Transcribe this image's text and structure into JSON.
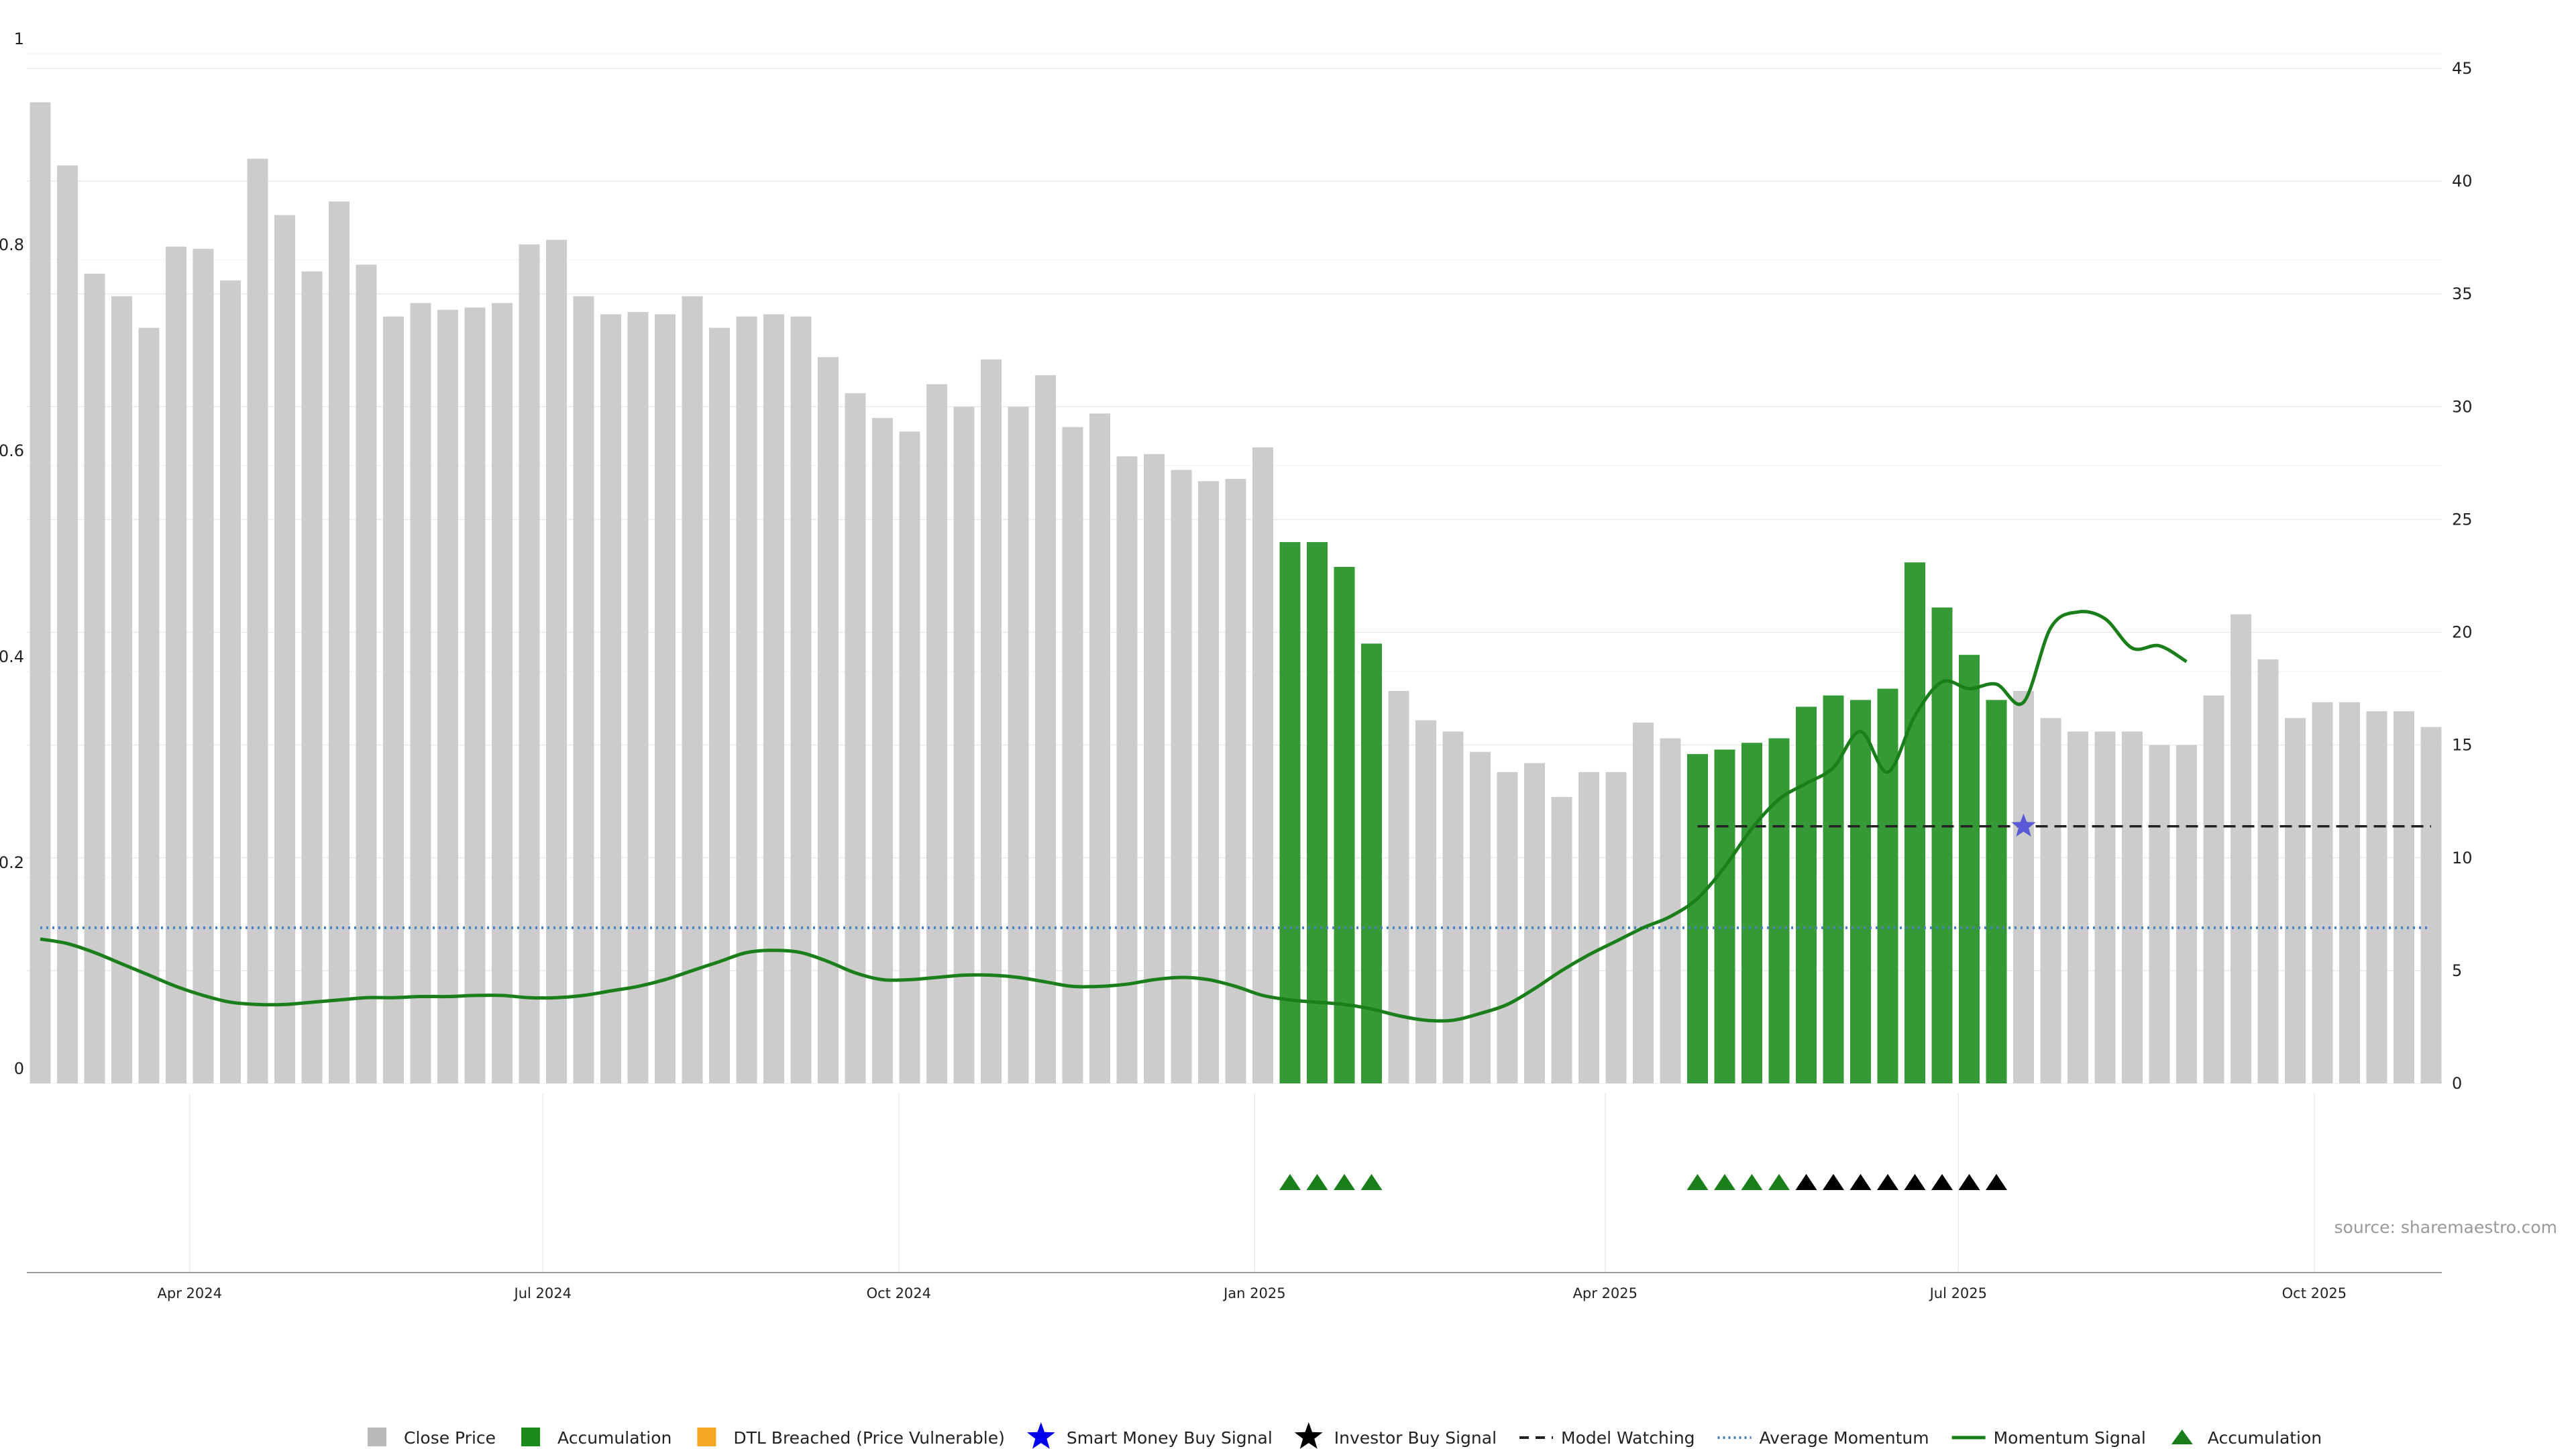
{
  "chart_data": {
    "type": "bar",
    "title": "",
    "left_axis": {
      "ticks": [
        0,
        0.2,
        0.4,
        0.6,
        0.8,
        1
      ],
      "tick_labels": [
        "0",
        "0.2",
        "0.4",
        "0.6",
        "0.8",
        "1"
      ],
      "range": [
        0,
        1
      ]
    },
    "right_axis": {
      "ticks": [
        0,
        5,
        10,
        15,
        20,
        25,
        30,
        35,
        40,
        45
      ],
      "tick_labels": [
        "0",
        "5",
        "10",
        "15",
        "20",
        "25",
        "30",
        "35",
        "40",
        "45"
      ],
      "range": [
        0,
        45
      ]
    },
    "x_axis": {
      "labels": [
        "Apr 2024",
        "Jul 2024",
        "Oct 2024",
        "Jan 2025",
        "Apr 2025",
        "Jul 2025",
        "Oct 2025"
      ],
      "label_bar_positions": [
        5.5,
        18.5,
        31.6,
        44.7,
        57.6,
        70.6,
        83.7
      ]
    },
    "grid": true,
    "close_price_weekly": [
      43.5,
      40.7,
      35.9,
      34.9,
      33.5,
      37.1,
      37.0,
      35.6,
      41.0,
      38.5,
      36.0,
      39.1,
      36.3,
      34.0,
      34.6,
      34.3,
      34.4,
      34.6,
      37.2,
      37.4,
      34.9,
      34.1,
      34.2,
      34.1,
      34.9,
      33.5,
      34.0,
      34.1,
      34.0,
      32.2,
      30.6,
      29.5,
      28.9,
      31.0,
      30.0,
      32.1,
      30.0,
      31.4,
      29.1,
      29.7,
      27.8,
      27.9,
      27.2,
      26.7,
      26.8,
      28.2,
      24.0,
      24.0,
      22.9,
      19.5,
      17.4,
      16.1,
      15.6,
      14.7,
      13.8,
      14.2,
      12.7,
      13.8,
      13.8,
      16.0,
      15.3,
      14.6,
      14.8,
      15.1,
      15.3,
      16.7,
      17.2,
      17.0,
      17.5,
      23.1,
      21.1,
      19.0,
      17.0,
      17.4,
      16.2,
      15.6,
      15.6,
      15.6,
      15.0,
      15.0,
      17.2,
      20.8,
      18.8,
      16.2,
      16.9,
      16.9,
      16.5,
      16.5,
      15.8
    ],
    "accumulation_bar_indices": [
      46,
      47,
      48,
      49,
      61,
      62,
      63,
      64,
      65,
      66,
      67,
      68,
      69,
      70,
      71,
      72
    ],
    "dtl_breached_bar_indices": [],
    "momentum_signal": [
      6.4,
      6.2,
      5.8,
      5.3,
      4.8,
      4.3,
      3.9,
      3.6,
      3.5,
      3.5,
      3.6,
      3.7,
      3.8,
      3.8,
      3.85,
      3.85,
      3.9,
      3.9,
      3.8,
      3.8,
      3.9,
      4.1,
      4.3,
      4.6,
      5.0,
      5.4,
      5.8,
      5.9,
      5.8,
      5.4,
      4.9,
      4.6,
      4.6,
      4.7,
      4.8,
      4.8,
      4.7,
      4.5,
      4.3,
      4.3,
      4.4,
      4.6,
      4.7,
      4.6,
      4.3,
      3.9,
      3.7,
      3.6,
      3.5,
      3.3,
      3.0,
      2.8,
      2.8,
      3.1,
      3.5,
      4.2,
      5.0,
      5.7,
      6.3,
      6.9,
      7.4,
      8.2,
      9.6,
      11.3,
      12.6,
      13.3,
      14.0,
      15.6,
      13.8,
      16.3,
      17.8,
      17.5,
      17.7,
      16.9,
      20.2,
      20.9,
      20.6,
      19.3,
      19.4,
      18.7
    ],
    "momentum_signal_start_index": 0,
    "average_momentum": 6.9,
    "model_watching_level": 11.4,
    "model_watching_bar_range": [
      61,
      88
    ],
    "smart_money_buy_signal": {
      "bar_index": 73,
      "value": 11.4
    },
    "accumulation_markers_green": [
      46,
      47,
      48,
      49,
      61,
      62,
      63,
      64
    ],
    "investor_markers_black": [
      65,
      66,
      67,
      68,
      69,
      70,
      71,
      72
    ],
    "colors": {
      "close_price": "#cccccc",
      "accumulation": "#359a35",
      "dtl_breached": "#f5a623",
      "smart_money": "#0000ee",
      "smart_money_plot": "#5a5ad6",
      "investor": "#000000",
      "model_watching": "#222222",
      "average_momentum": "#4a7fc1",
      "momentum_signal": "#1a7f1a",
      "grid": "#e6e6e6"
    },
    "legend": [
      {
        "label": "Close Price",
        "kind": "square",
        "color": "#b9b9b9"
      },
      {
        "label": "Accumulation",
        "kind": "square",
        "color": "#1d8a1d"
      },
      {
        "label": "DTL Breached (Price Vulnerable)",
        "kind": "square",
        "color": "#f5a623"
      },
      {
        "label": "Smart Money Buy Signal",
        "kind": "star",
        "color": "#0000ee"
      },
      {
        "label": "Investor Buy Signal",
        "kind": "star",
        "color": "#000000"
      },
      {
        "label": "Model Watching",
        "kind": "dash",
        "color": "#222222"
      },
      {
        "label": "Average Momentum",
        "kind": "dot",
        "color": "#4a7fc1"
      },
      {
        "label": "Momentum Signal",
        "kind": "line",
        "color": "#1a7f1a"
      },
      {
        "label": "Accumulation",
        "kind": "triangle",
        "color": "#1a7f1a"
      }
    ],
    "source": "source: sharemaestro.com"
  }
}
